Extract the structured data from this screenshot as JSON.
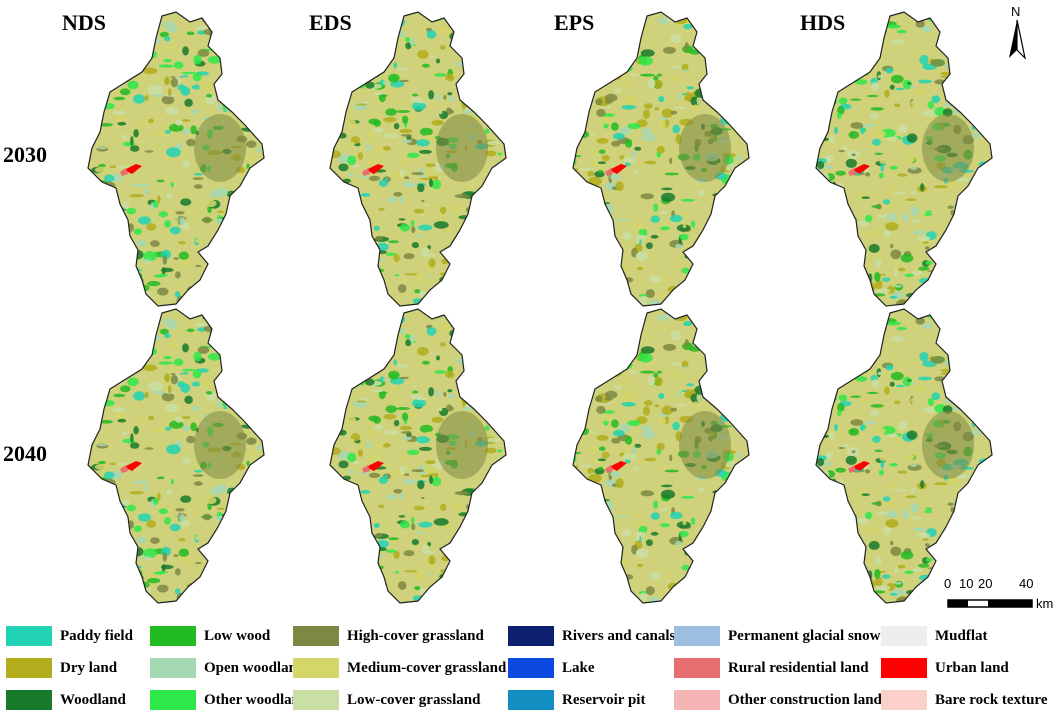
{
  "columns": [
    "NDS",
    "EDS",
    "EPS",
    "HDS"
  ],
  "rows": [
    "2030",
    "2040"
  ],
  "north_arrow": {
    "letter": "N",
    "icon": "north-arrow-icon"
  },
  "scale_bar": {
    "ticks": [
      "0",
      "10",
      "20",
      "40"
    ],
    "unit": "km"
  },
  "legend": [
    {
      "label": "Paddy field",
      "color": "#22d3b3"
    },
    {
      "label": "Low wood",
      "color": "#22bb22"
    },
    {
      "label": "High-cover grassland",
      "color": "#7d8843"
    },
    {
      "label": "Rivers and canals",
      "color": "#0d1f6e"
    },
    {
      "label": "Permanent glacial snow",
      "color": "#9cbfe0"
    },
    {
      "label": "Mudflat",
      "color": "#eeeeee"
    },
    {
      "label": "Dry land",
      "color": "#b1ad1c"
    },
    {
      "label": "Open woodland",
      "color": "#a6d8b4"
    },
    {
      "label": "Medium-cover grassland",
      "color": "#d4d66a"
    },
    {
      "label": "Lake",
      "color": "#0b49e0"
    },
    {
      "label": "Rural residential land",
      "color": "#e66e6e"
    },
    {
      "label": "Urban land",
      "color": "#ff0000"
    },
    {
      "label": "Woodland",
      "color": "#187b2c"
    },
    {
      "label": "Other woodland",
      "color": "#2ee84a"
    },
    {
      "label": "Low-cover grassland",
      "color": "#c9dfa4"
    },
    {
      "label": "Reservoir pit",
      "color": "#138fc2"
    },
    {
      "label": "Other construction land",
      "color": "#f6b5b5"
    },
    {
      "label": "Bare rock texture",
      "color": "#fbd0c8"
    }
  ]
}
